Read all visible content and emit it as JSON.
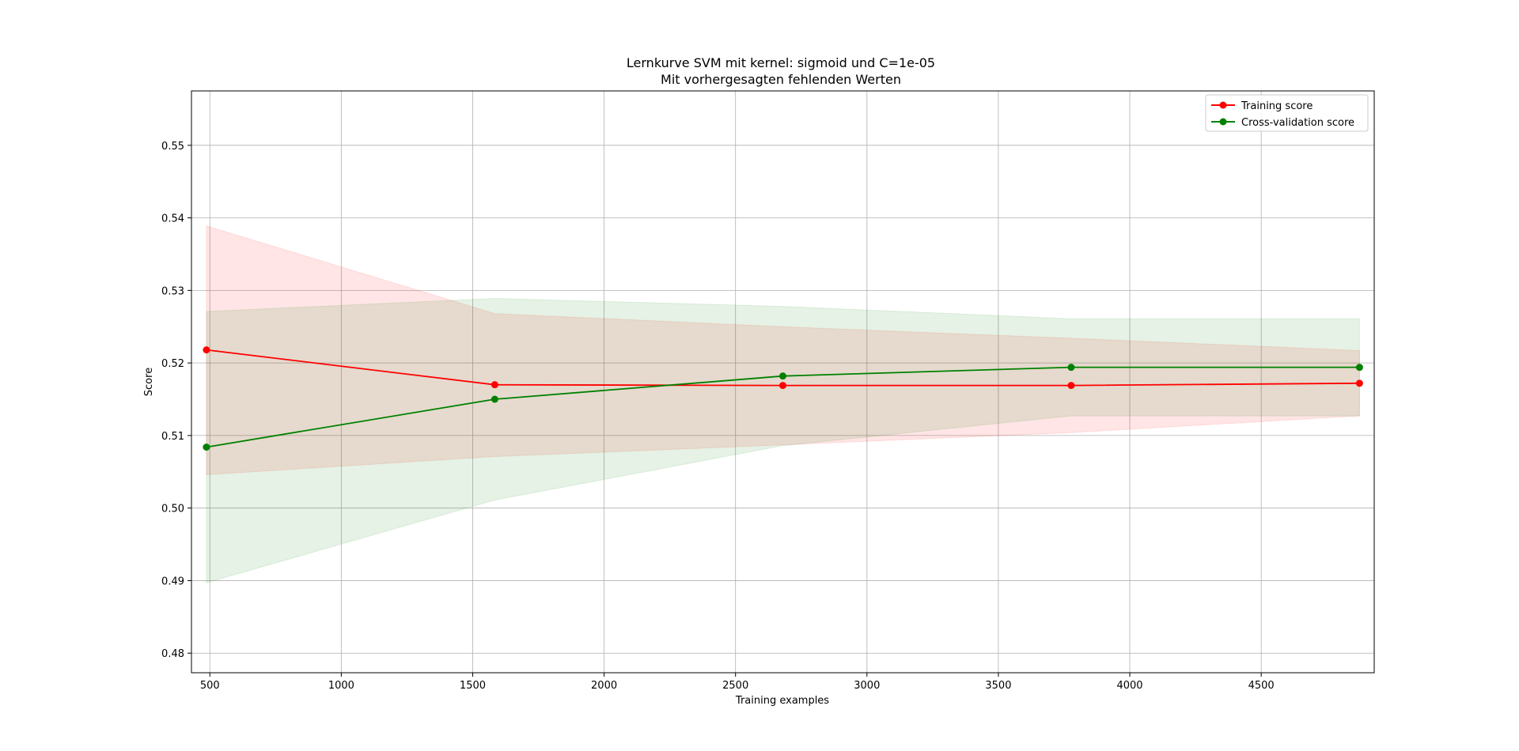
{
  "chart_data": {
    "type": "line",
    "title_line1": "Lernkurve SVM mit kernel: sigmoid und C=1e-05",
    "title_line2": "Mit vorhergesagten fehlenden Werten",
    "xlabel": "Training examples",
    "ylabel": "Score",
    "xlim": [
      430,
      4930
    ],
    "ylim": [
      0.4773,
      0.5575
    ],
    "xticks": [
      500,
      1000,
      1500,
      2000,
      2500,
      3000,
      3500,
      4000,
      4500
    ],
    "xtick_labels": [
      "500",
      "1000",
      "1500",
      "2000",
      "2500",
      "3000",
      "3500",
      "4000",
      "4500"
    ],
    "yticks": [
      0.48,
      0.49,
      0.5,
      0.51,
      0.52,
      0.53,
      0.54,
      0.55
    ],
    "ytick_labels": [
      "0.48",
      "0.49",
      "0.50",
      "0.51",
      "0.52",
      "0.53",
      "0.54",
      "0.55"
    ],
    "grid": true,
    "legend_position": "top-right",
    "x": [
      487,
      1584,
      2680,
      3777,
      4874
    ],
    "series": [
      {
        "name": "Training score",
        "color": "#ff0000",
        "values": [
          0.5218,
          0.517,
          0.5169,
          0.5169,
          0.5172
        ],
        "band_upper": [
          0.5389,
          0.5268,
          0.525,
          0.5234,
          0.5217
        ],
        "band_lower": [
          0.5046,
          0.5071,
          0.5087,
          0.5104,
          0.5127
        ]
      },
      {
        "name": "Cross-validation score",
        "color": "#008000",
        "values": [
          0.5084,
          0.515,
          0.5182,
          0.5194,
          0.5194
        ],
        "band_upper": [
          0.5271,
          0.5289,
          0.5278,
          0.5261,
          0.5261
        ],
        "band_lower": [
          0.4897,
          0.5011,
          0.5086,
          0.5127,
          0.5127
        ]
      }
    ]
  }
}
